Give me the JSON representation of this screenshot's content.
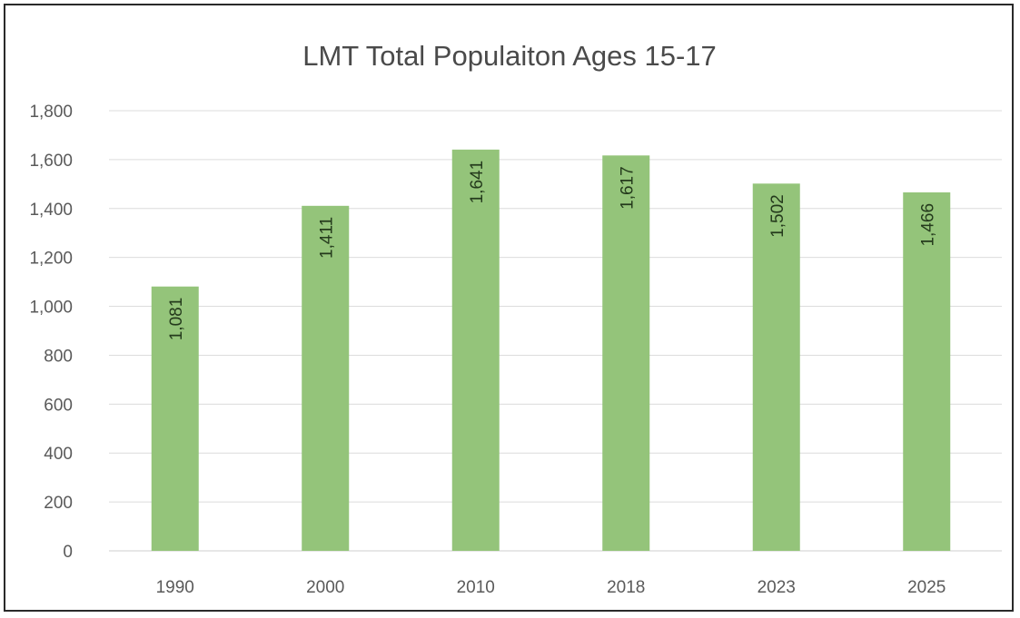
{
  "chart_data": {
    "type": "bar",
    "title": "LMT Total Populaiton Ages 15-17",
    "xlabel": "",
    "ylabel": "",
    "categories": [
      "1990",
      "2000",
      "2010",
      "2018",
      "2023",
      "2025"
    ],
    "values": [
      1081,
      1411,
      1641,
      1617,
      1502,
      1466
    ],
    "data_labels": [
      "1,081",
      "1,411",
      "1,641",
      "1,617",
      "1,502",
      "1,466"
    ],
    "ylim": [
      0,
      1800
    ],
    "y_ticks": [
      0,
      200,
      400,
      600,
      800,
      1000,
      1200,
      1400,
      1600,
      1800
    ],
    "y_tick_labels": [
      "0",
      "200",
      "400",
      "600",
      "800",
      "1,000",
      "1,200",
      "1,400",
      "1,600",
      "1,800"
    ],
    "grid": true,
    "legend": "none",
    "colors": {
      "bar": "#94c47a",
      "gridline": "#dcdcdc",
      "data_label": "#243a1c"
    }
  }
}
